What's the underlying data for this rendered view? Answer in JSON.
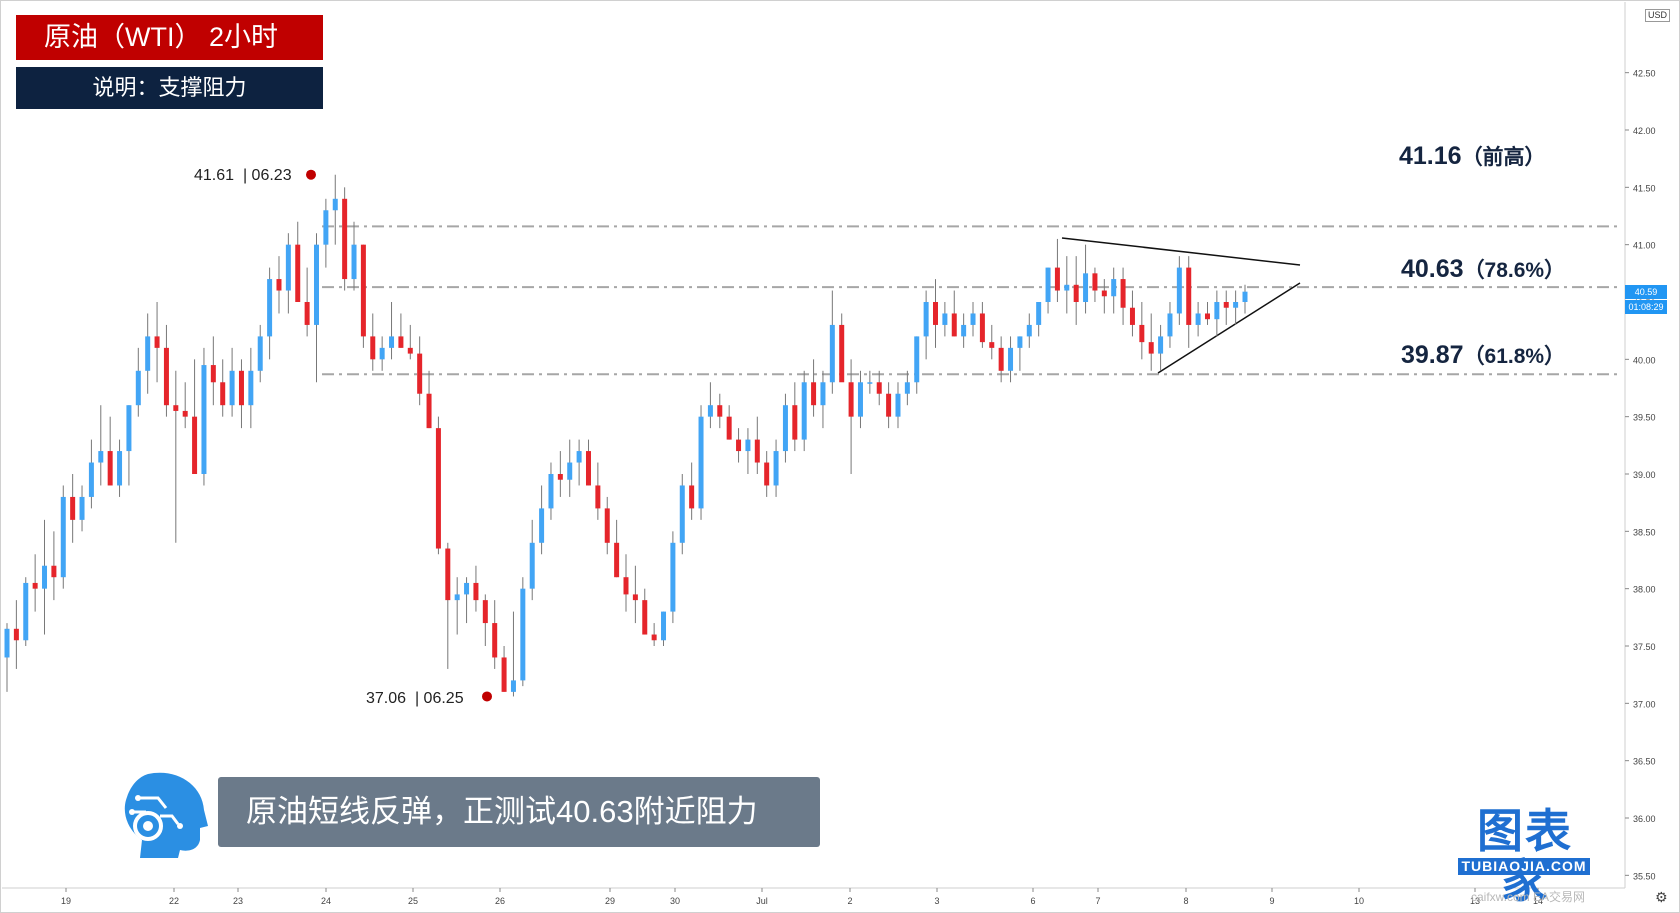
{
  "header": {
    "title": "原油（WTI） 2小时",
    "subtitle": "说明：支撑阻力"
  },
  "caption": "原油短线反弹，正测试40.63附近阻力",
  "brand": {
    "cn": "图表家",
    "en": "TUBIAOJIA.COM"
  },
  "watermark": "caifxw.com  EA交易网",
  "icons": [
    "robot-head-icon",
    "gear-icon"
  ],
  "colors": {
    "up": "#42a5f5",
    "down": "#e5252b",
    "level_line": "#a6a6a6",
    "label_red": "#c00000",
    "label_navy": "#0d2240",
    "price_tag": "#2196f3"
  },
  "levels": [
    {
      "value": 41.16,
      "label_main": "41.16",
      "label_sub": "（前高）"
    },
    {
      "value": 40.63,
      "label_main": "40.63",
      "label_sub": "（78.6%）"
    },
    {
      "value": 39.87,
      "label_main": "39.87",
      "label_sub": "（61.8%）"
    }
  ],
  "pins": [
    {
      "price": "41.61",
      "date": "06.23"
    },
    {
      "price": "37.06",
      "date": "06.25"
    }
  ],
  "price_axis": {
    "currency": "USD",
    "current_price": "40.59",
    "countdown": "01:08:29"
  },
  "chart_data": {
    "type": "candlestick",
    "title": "原油（WTI） 2小时",
    "ylim": [
      35.25,
      42.9
    ],
    "y_ticks": [
      "35.50",
      "36.00",
      "36.50",
      "37.00",
      "37.50",
      "38.00",
      "38.50",
      "39.00",
      "39.50",
      "40.00",
      "40.50",
      "41.00",
      "41.50",
      "42.00",
      "42.50"
    ],
    "x_ticks": [
      "19",
      "22",
      "23",
      "24",
      "25",
      "26",
      "29",
      "30",
      "Jul",
      "2",
      "3",
      "6",
      "7",
      "8",
      "9",
      "10",
      "13",
      "14"
    ],
    "grid": false,
    "candles_ohlc": [
      [
        37.4,
        37.7,
        37.1,
        37.65
      ],
      [
        37.65,
        37.9,
        37.3,
        37.55
      ],
      [
        37.55,
        38.1,
        37.5,
        38.05
      ],
      [
        38.05,
        38.3,
        37.8,
        38.0
      ],
      [
        38.0,
        38.6,
        37.6,
        38.2
      ],
      [
        38.2,
        38.5,
        37.9,
        38.1
      ],
      [
        38.1,
        38.9,
        38.0,
        38.8
      ],
      [
        38.8,
        39.0,
        38.4,
        38.6
      ],
      [
        38.6,
        38.9,
        38.5,
        38.8
      ],
      [
        38.8,
        39.3,
        38.7,
        39.1
      ],
      [
        39.1,
        39.6,
        38.9,
        39.2
      ],
      [
        39.2,
        39.5,
        38.9,
        38.9
      ],
      [
        38.9,
        39.3,
        38.8,
        39.2
      ],
      [
        39.2,
        39.6,
        38.9,
        39.6
      ],
      [
        39.6,
        40.1,
        39.5,
        39.9
      ],
      [
        39.9,
        40.4,
        39.7,
        40.2
      ],
      [
        40.2,
        40.5,
        39.8,
        40.1
      ],
      [
        40.1,
        40.3,
        39.5,
        39.6
      ],
      [
        39.6,
        39.9,
        38.4,
        39.55
      ],
      [
        39.55,
        39.8,
        39.4,
        39.5
      ],
      [
        39.5,
        40.0,
        39.0,
        39.0
      ],
      [
        39.0,
        40.1,
        38.9,
        39.95
      ],
      [
        39.95,
        40.2,
        39.6,
        39.8
      ],
      [
        39.8,
        40.0,
        39.5,
        39.6
      ],
      [
        39.6,
        40.1,
        39.5,
        39.9
      ],
      [
        39.9,
        40.0,
        39.4,
        39.6
      ],
      [
        39.6,
        40.1,
        39.4,
        39.9
      ],
      [
        39.9,
        40.3,
        39.8,
        40.2
      ],
      [
        40.2,
        40.8,
        40.0,
        40.7
      ],
      [
        40.7,
        40.9,
        40.4,
        40.6
      ],
      [
        40.6,
        41.1,
        40.4,
        41.0
      ],
      [
        41.0,
        41.2,
        40.5,
        40.5
      ],
      [
        40.5,
        40.8,
        40.2,
        40.3
      ],
      [
        40.3,
        41.1,
        39.8,
        41.0
      ],
      [
        41.0,
        41.4,
        40.8,
        41.3
      ],
      [
        41.3,
        41.61,
        41.0,
        41.4
      ],
      [
        41.4,
        41.5,
        40.6,
        40.7
      ],
      [
        40.7,
        41.2,
        40.6,
        41.0
      ],
      [
        41.0,
        41.0,
        40.1,
        40.2
      ],
      [
        40.2,
        40.4,
        39.9,
        40.0
      ],
      [
        40.0,
        40.2,
        39.9,
        40.1
      ],
      [
        40.1,
        40.5,
        40.0,
        40.2
      ],
      [
        40.2,
        40.4,
        40.1,
        40.1
      ],
      [
        40.1,
        40.3,
        40.0,
        40.05
      ],
      [
        40.05,
        40.2,
        39.6,
        39.7
      ],
      [
        39.7,
        39.9,
        39.4,
        39.4
      ],
      [
        39.4,
        39.5,
        38.3,
        38.35
      ],
      [
        38.35,
        38.4,
        37.3,
        37.9
      ],
      [
        37.9,
        38.1,
        37.6,
        37.95
      ],
      [
        37.95,
        38.1,
        37.7,
        38.05
      ],
      [
        38.05,
        38.2,
        37.8,
        37.9
      ],
      [
        37.9,
        37.95,
        37.5,
        37.7
      ],
      [
        37.7,
        37.9,
        37.3,
        37.4
      ],
      [
        37.4,
        37.5,
        37.1,
        37.1
      ],
      [
        37.1,
        37.8,
        37.06,
        37.2
      ],
      [
        37.2,
        38.1,
        37.15,
        38.0
      ],
      [
        38.0,
        38.6,
        37.9,
        38.4
      ],
      [
        38.4,
        38.9,
        38.3,
        38.7
      ],
      [
        38.7,
        39.1,
        38.6,
        39.0
      ],
      [
        39.0,
        39.2,
        38.8,
        38.95
      ],
      [
        38.95,
        39.3,
        38.8,
        39.1
      ],
      [
        39.1,
        39.3,
        38.9,
        39.2
      ],
      [
        39.2,
        39.3,
        38.9,
        38.9
      ],
      [
        38.9,
        39.1,
        38.6,
        38.7
      ],
      [
        38.7,
        38.8,
        38.3,
        38.4
      ],
      [
        38.4,
        38.6,
        38.1,
        38.1
      ],
      [
        38.1,
        38.3,
        37.8,
        37.95
      ],
      [
        37.95,
        38.2,
        37.7,
        37.9
      ],
      [
        37.9,
        38.0,
        37.6,
        37.6
      ],
      [
        37.6,
        37.7,
        37.5,
        37.55
      ],
      [
        37.55,
        37.8,
        37.5,
        37.8
      ],
      [
        37.8,
        38.5,
        37.7,
        38.4
      ],
      [
        38.4,
        39.0,
        38.3,
        38.9
      ],
      [
        38.9,
        39.1,
        38.6,
        38.7
      ],
      [
        38.7,
        39.6,
        38.6,
        39.5
      ],
      [
        39.5,
        39.8,
        39.4,
        39.6
      ],
      [
        39.6,
        39.7,
        39.4,
        39.5
      ],
      [
        39.5,
        39.6,
        39.3,
        39.3
      ],
      [
        39.3,
        39.4,
        39.1,
        39.2
      ],
      [
        39.2,
        39.4,
        39.0,
        39.3
      ],
      [
        39.3,
        39.5,
        39.0,
        39.1
      ],
      [
        39.1,
        39.2,
        38.8,
        38.9
      ],
      [
        38.9,
        39.3,
        38.8,
        39.2
      ],
      [
        39.2,
        39.7,
        39.1,
        39.6
      ],
      [
        39.6,
        39.8,
        39.2,
        39.3
      ],
      [
        39.3,
        39.9,
        39.2,
        39.8
      ],
      [
        39.8,
        40.0,
        39.5,
        39.6
      ],
      [
        39.6,
        39.9,
        39.4,
        39.8
      ],
      [
        39.8,
        40.6,
        39.7,
        40.3
      ],
      [
        40.3,
        40.4,
        39.9,
        39.8
      ],
      [
        39.8,
        40.0,
        39.0,
        39.5
      ],
      [
        39.5,
        39.9,
        39.4,
        39.8
      ],
      [
        39.8,
        39.9,
        39.7,
        39.8
      ],
      [
        39.8,
        39.9,
        39.6,
        39.7
      ],
      [
        39.7,
        39.8,
        39.4,
        39.5
      ],
      [
        39.5,
        39.8,
        39.4,
        39.7
      ],
      [
        39.7,
        39.9,
        39.6,
        39.8
      ],
      [
        39.8,
        40.2,
        39.7,
        40.2
      ],
      [
        40.2,
        40.6,
        40.0,
        40.5
      ],
      [
        40.5,
        40.7,
        40.1,
        40.3
      ],
      [
        40.3,
        40.5,
        40.2,
        40.4
      ],
      [
        40.4,
        40.6,
        40.2,
        40.2
      ],
      [
        40.2,
        40.4,
        40.1,
        40.3
      ],
      [
        40.3,
        40.5,
        40.2,
        40.4
      ],
      [
        40.4,
        40.5,
        40.1,
        40.15
      ],
      [
        40.15,
        40.3,
        40.0,
        40.1
      ],
      [
        40.1,
        40.2,
        39.8,
        39.9
      ],
      [
        39.9,
        40.2,
        39.8,
        40.1
      ],
      [
        40.1,
        40.2,
        39.9,
        40.2
      ],
      [
        40.2,
        40.4,
        40.1,
        40.3
      ],
      [
        40.3,
        40.5,
        40.2,
        40.5
      ],
      [
        40.5,
        40.8,
        40.4,
        40.8
      ],
      [
        40.8,
        41.05,
        40.5,
        40.6
      ],
      [
        40.6,
        40.9,
        40.4,
        40.65
      ],
      [
        40.65,
        40.9,
        40.3,
        40.5
      ],
      [
        40.5,
        41.0,
        40.4,
        40.75
      ],
      [
        40.75,
        40.8,
        40.5,
        40.6
      ],
      [
        40.6,
        40.7,
        40.4,
        40.55
      ],
      [
        40.55,
        40.8,
        40.4,
        40.7
      ],
      [
        40.7,
        40.8,
        40.3,
        40.45
      ],
      [
        40.45,
        40.6,
        40.2,
        40.3
      ],
      [
        40.3,
        40.5,
        40.0,
        40.15
      ],
      [
        40.15,
        40.4,
        39.9,
        40.05
      ],
      [
        40.05,
        40.3,
        39.9,
        40.2
      ],
      [
        40.2,
        40.5,
        40.1,
        40.4
      ],
      [
        40.4,
        40.9,
        40.3,
        40.8
      ],
      [
        40.8,
        40.9,
        40.1,
        40.3
      ],
      [
        40.3,
        40.5,
        40.2,
        40.4
      ],
      [
        40.4,
        40.5,
        40.3,
        40.35
      ],
      [
        40.35,
        40.6,
        40.2,
        40.5
      ],
      [
        40.5,
        40.6,
        40.3,
        40.45
      ],
      [
        40.45,
        40.6,
        40.3,
        40.5
      ],
      [
        40.5,
        40.65,
        40.4,
        40.59
      ]
    ],
    "levels": [
      41.16,
      40.63,
      39.87
    ],
    "annotations": [
      "41.16（前高）",
      "40.63（78.6%）",
      "39.87（61.8%）",
      "41.61 | 06.23",
      "37.06 | 06.25"
    ]
  }
}
